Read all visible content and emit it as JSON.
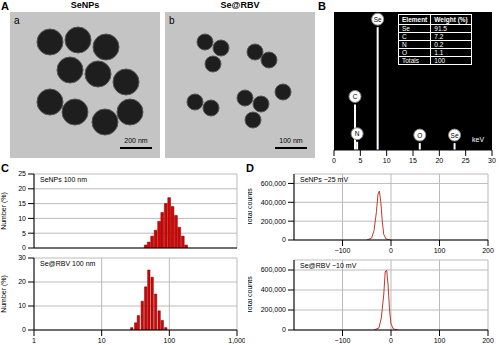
{
  "figure": {
    "panel_labels": [
      "A",
      "B",
      "C",
      "D"
    ]
  },
  "images": [
    {
      "panel": "a",
      "title": "SeNPs",
      "scale_bar": "200 nm"
    },
    {
      "panel": "b",
      "title": "Se@RBV",
      "scale_bar": "100 nm"
    }
  ],
  "chart_data": [
    {
      "type": "bar",
      "x": [
        4,
        4.4,
        8.3,
        16.3,
        22.9
      ],
      "values": [
        33,
        6,
        89,
        5,
        5
      ],
      "peak_labels": [
        "C",
        "N",
        "Se",
        "O",
        "Se"
      ],
      "color": "#ffffff",
      "xlim": [
        0,
        30
      ],
      "xticks": [
        0,
        5,
        10,
        15,
        20,
        25,
        30
      ],
      "ylim": [
        0,
        100
      ],
      "x_label": "keV",
      "tick_labels": "x",
      "table": {
        "columns": [
          "Element",
          "Weight (%)"
        ],
        "rows": [
          [
            "Se",
            91.5
          ],
          [
            "C",
            7.2
          ],
          [
            "N",
            0.2
          ],
          [
            "O",
            1.1
          ],
          [
            "Totals",
            100
          ]
        ]
      }
    },
    {
      "type": "bar",
      "annotation": "SeNPs 100 nm",
      "x": [
        45,
        50,
        56,
        63,
        71,
        79,
        89,
        100,
        112,
        126,
        141,
        159,
        178
      ],
      "values": [
        1,
        2,
        4,
        6,
        9,
        12,
        15,
        17,
        14,
        11,
        7,
        4,
        1
      ],
      "color": "#e00000",
      "log": "x",
      "xlim": [
        1,
        1000
      ],
      "xticks": [
        1,
        10,
        100,
        1000
      ],
      "ylim": [
        0,
        25
      ],
      "yticks": [
        0,
        5,
        10,
        15,
        20,
        25
      ],
      "y_label": "Number (%)",
      "grid": true,
      "tick_labels": "y"
    },
    {
      "type": "bar",
      "annotation": "Se@RBV 100 nm",
      "x": [
        28,
        32,
        35,
        40,
        45,
        50,
        56,
        63,
        71,
        79,
        89
      ],
      "values": [
        1,
        3,
        6,
        12,
        18,
        25,
        22,
        15,
        8,
        4,
        1
      ],
      "color": "#e00000",
      "log": "x",
      "xlim": [
        1,
        1000
      ],
      "xticks": [
        1,
        10,
        100,
        {
          "value": 1000,
          "label": "1,000"
        }
      ],
      "ylim": [
        0,
        30
      ],
      "yticks": [
        0,
        10,
        20,
        30
      ],
      "y_label": "Number (%)",
      "grid": true
    },
    {
      "type": "line",
      "annotation": "SeNPs −25 mV",
      "x": [
        -50,
        -40,
        -35,
        -30,
        -27,
        -24,
        -21,
        -18,
        -15,
        -10,
        0
      ],
      "values": [
        0,
        20000,
        100000,
        300000,
        480000,
        520000,
        400000,
        200000,
        60000,
        10000,
        0
      ],
      "color": "#c0392b",
      "xlim": [
        -200,
        200
      ],
      "xticks": [
        {
          "value": -100,
          "label": "−100"
        },
        0,
        100,
        200
      ],
      "ylim": [
        0,
        700000
      ],
      "yticks": [
        0,
        {
          "value": 200000,
          "label": "200,000"
        },
        {
          "value": 400000,
          "label": "400,000"
        },
        {
          "value": 600000,
          "label": "600,000"
        }
      ],
      "y_label": "Total counts",
      "grid": true
    },
    {
      "type": "line",
      "annotation": "Se@RBV −10 mV",
      "x": [
        -35,
        -25,
        -20,
        -15,
        -12,
        -9,
        -6,
        -3,
        0,
        5,
        15
      ],
      "values": [
        0,
        20000,
        120000,
        350000,
        580000,
        600000,
        450000,
        200000,
        60000,
        10000,
        0
      ],
      "color": "#c0392b",
      "xlim": [
        -200,
        200
      ],
      "xticks": [
        {
          "value": -100,
          "label": "−100"
        },
        0,
        100,
        200
      ],
      "ylim": [
        0,
        700000
      ],
      "yticks": [
        0,
        {
          "value": 200000,
          "label": "200,000"
        },
        {
          "value": 400000,
          "label": "400,000"
        },
        {
          "value": 600000,
          "label": "600,000"
        }
      ],
      "y_label": "Total counts",
      "grid": true
    }
  ]
}
